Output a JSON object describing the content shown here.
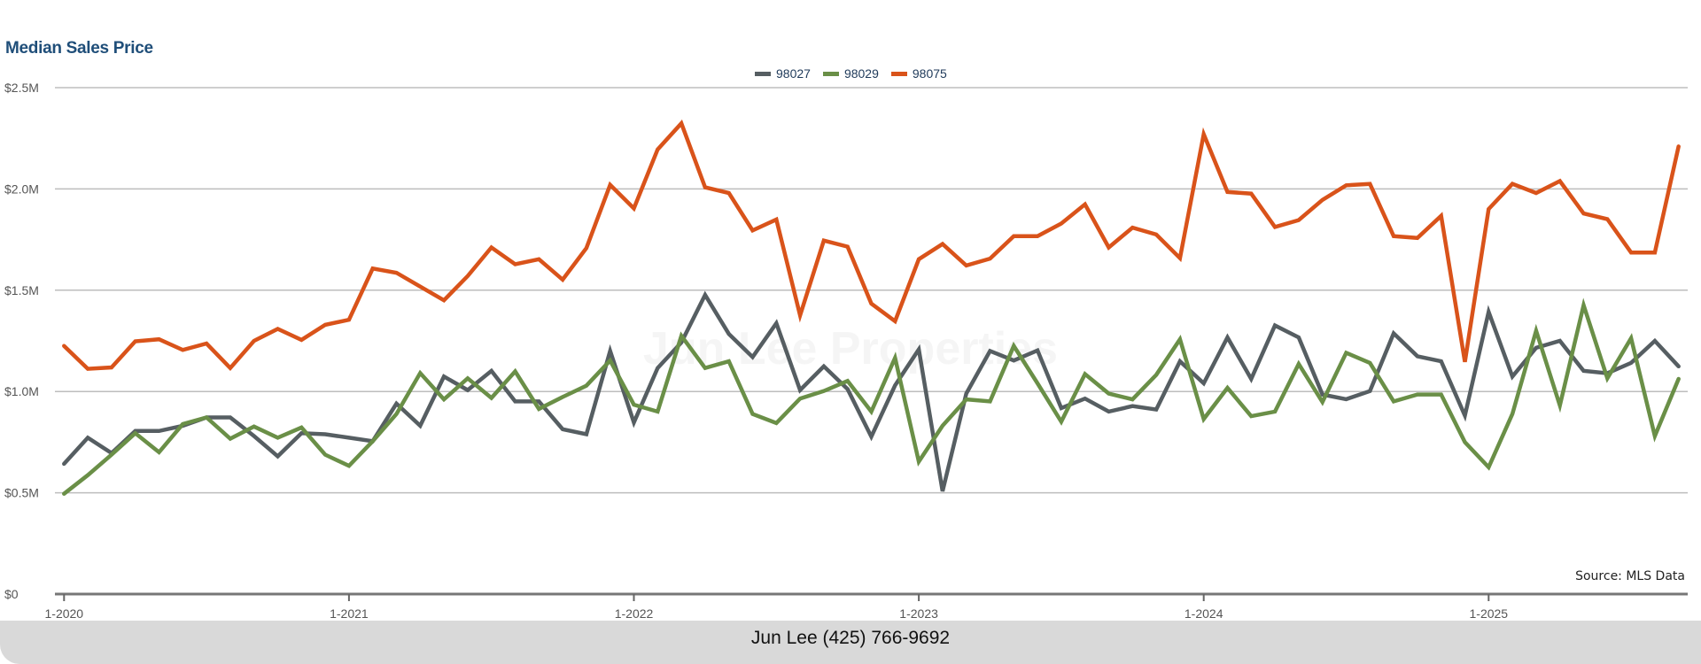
{
  "chart_data": {
    "type": "line",
    "title": "Median Sales Price",
    "xlabel": "",
    "ylabel": "",
    "ylim": [
      0,
      2500000
    ],
    "yticks": [
      0,
      500000,
      1000000,
      1500000,
      2000000,
      2500000
    ],
    "ytick_labels": [
      "$0",
      "$0.5M",
      "$1.0M",
      "$1.5M",
      "$2.0M",
      "$2.5M"
    ],
    "x_start": "1-2020",
    "x_interval": "monthly",
    "xtick_labels": [
      "1-2020",
      "1-2021",
      "1-2022",
      "1-2023",
      "1-2024",
      "1-2025"
    ],
    "xtick_month_index": [
      0,
      12,
      24,
      36,
      48,
      60
    ],
    "grid": true,
    "legend_position": "top-center",
    "annotation": "Source: MLS Data",
    "series": [
      {
        "name": "98027",
        "color": "#565e62",
        "values": [
          0.643,
          0.772,
          0.696,
          0.805,
          0.805,
          0.831,
          0.872,
          0.872,
          0.78,
          0.68,
          0.794,
          0.789,
          0.772,
          0.755,
          0.94,
          0.831,
          1.074,
          1.007,
          1.102,
          0.951,
          0.951,
          0.814,
          0.789,
          1.2,
          0.847,
          1.116,
          1.242,
          1.477,
          1.284,
          1.17,
          1.337,
          1.007,
          1.124,
          1.012,
          0.777,
          1.03,
          1.208,
          0.508,
          0.99,
          1.2,
          1.153,
          1.203,
          0.918,
          0.965,
          0.901,
          0.928,
          0.911,
          1.149,
          1.04,
          1.267,
          1.062,
          1.326,
          1.267,
          0.985,
          0.962,
          1.002,
          1.287,
          1.174,
          1.149,
          0.881,
          1.393,
          1.074,
          1.216,
          1.25,
          1.102,
          1.09,
          1.141,
          1.25,
          1.124
        ]
      },
      {
        "name": "98029",
        "color": "#6a8f47",
        "values": [
          0.495,
          0.587,
          0.688,
          0.794,
          0.7,
          0.839,
          0.872,
          0.767,
          0.827,
          0.772,
          0.822,
          0.688,
          0.633,
          0.755,
          0.889,
          1.091,
          0.961,
          1.065,
          0.968,
          1.099,
          0.914,
          0.973,
          1.029,
          1.153,
          0.935,
          0.901,
          1.275,
          1.116,
          1.149,
          0.889,
          0.844,
          0.965,
          1.002,
          1.052,
          0.901,
          1.166,
          0.654,
          0.831,
          0.961,
          0.951,
          1.225,
          1.04,
          0.851,
          1.086,
          0.99,
          0.961,
          1.082,
          1.258,
          0.864,
          1.018,
          0.878,
          0.901,
          1.136,
          0.948,
          1.191,
          1.141,
          0.951,
          0.985,
          0.985,
          0.75,
          0.626,
          0.889,
          1.3,
          0.931,
          1.426,
          1.065,
          1.263,
          0.78,
          1.062
        ]
      },
      {
        "name": "98075",
        "color": "#d9531a",
        "values": [
          1.225,
          1.112,
          1.119,
          1.248,
          1.258,
          1.205,
          1.237,
          1.116,
          1.25,
          1.309,
          1.255,
          1.329,
          1.354,
          1.607,
          1.586,
          1.518,
          1.45,
          1.57,
          1.711,
          1.628,
          1.653,
          1.552,
          1.708,
          2.02,
          1.904,
          2.195,
          2.324,
          2.008,
          1.98,
          1.795,
          1.849,
          1.376,
          1.745,
          1.715,
          1.434,
          1.347,
          1.653,
          1.728,
          1.622,
          1.656,
          1.767,
          1.767,
          1.829,
          1.924,
          1.711,
          1.809,
          1.775,
          1.658,
          2.27,
          1.985,
          1.977,
          1.812,
          1.846,
          1.946,
          2.018,
          2.025,
          1.767,
          1.758,
          1.867,
          1.146,
          1.901,
          2.025,
          1.98,
          2.039,
          1.879,
          1.851,
          1.686,
          1.686,
          2.21
        ]
      }
    ],
    "value_unit": "millions USD"
  },
  "watermark": "Jun Lee Properties",
  "footer": {
    "contact": "Jun Lee (425) 766-9692"
  }
}
